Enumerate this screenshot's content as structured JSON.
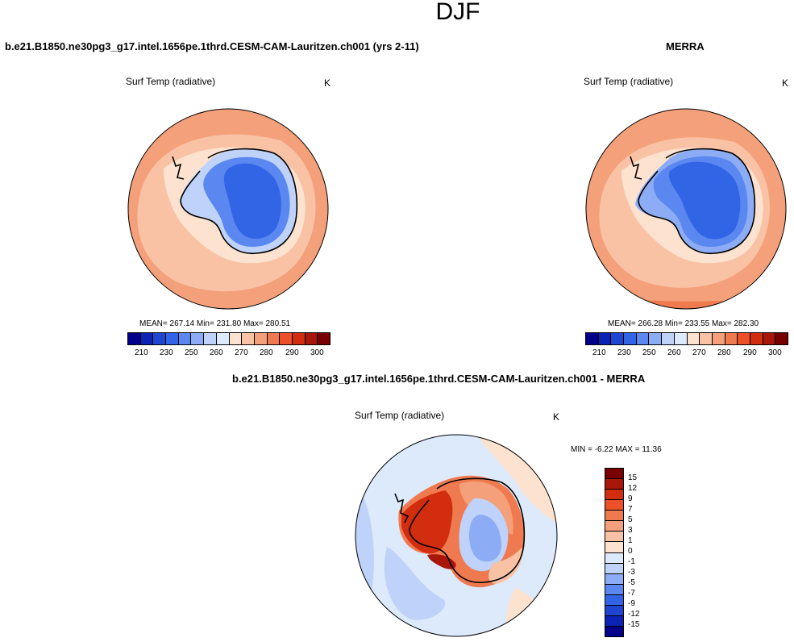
{
  "season": "DJF",
  "chart_data": [
    {
      "type": "heatmap",
      "projection": "south-polar-stereographic",
      "title": "b.e21.B1850.ne30pg3_g17.intel.1656pe.1thrd.CESM-CAM-Lauritzen.ch001 (yrs 2-11)",
      "variable": "Surf Temp (radiative)",
      "units": "K",
      "stats": {
        "text": "MEAN= 267.14  Min= 231.80  Max= 280.51",
        "mean": 267.14,
        "min": 231.8,
        "max": 280.51
      },
      "colorbar_labels": [
        "210",
        "230",
        "250",
        "260",
        "270",
        "280",
        "290",
        "300"
      ]
    },
    {
      "type": "heatmap",
      "projection": "south-polar-stereographic",
      "title": "MERRA",
      "variable": "Surf Temp (radiative)",
      "units": "K",
      "stats": {
        "text": "MEAN= 266.28  Min= 233.55  Max= 282.30",
        "mean": 266.28,
        "min": 233.55,
        "max": 282.3
      },
      "colorbar_labels": [
        "210",
        "230",
        "250",
        "260",
        "270",
        "280",
        "290",
        "300"
      ]
    },
    {
      "type": "heatmap",
      "projection": "south-polar-stereographic",
      "title": "b.e21.B1850.ne30pg3_g17.intel.1656pe.1thrd.CESM-CAM-Lauritzen.ch001 - MERRA",
      "variable": "Surf Temp (radiative)",
      "units": "K",
      "stats": {
        "text": "MIN =  -6.22 MAX =  11.36",
        "min": -6.22,
        "max": 11.36
      },
      "colorbar_labels": [
        "15",
        "12",
        "9",
        "7",
        "5",
        "3",
        "1",
        "0",
        "-1",
        "-3",
        "-5",
        "-7",
        "-9",
        "-12",
        "-15"
      ]
    }
  ],
  "colors": {
    "scale": [
      "#00008b",
      "#0a23b4",
      "#1e46d2",
      "#3264e6",
      "#5a87f0",
      "#8cadf5",
      "#bed2fa",
      "#dceafc",
      "#fde3cf",
      "#f9c2a5",
      "#f4a07a",
      "#f07a50",
      "#eb5028",
      "#d22d0f",
      "#a8170a",
      "#780000"
    ],
    "diverging": [
      "#780000",
      "#a8170a",
      "#d22d0f",
      "#eb5028",
      "#f07a50",
      "#f4a07a",
      "#f9c2a5",
      "#fde3cf",
      "#dceafc",
      "#bed2fa",
      "#8cadf5",
      "#5a87f0",
      "#3264e6",
      "#1e46d2",
      "#0a23b4",
      "#00008b"
    ]
  }
}
